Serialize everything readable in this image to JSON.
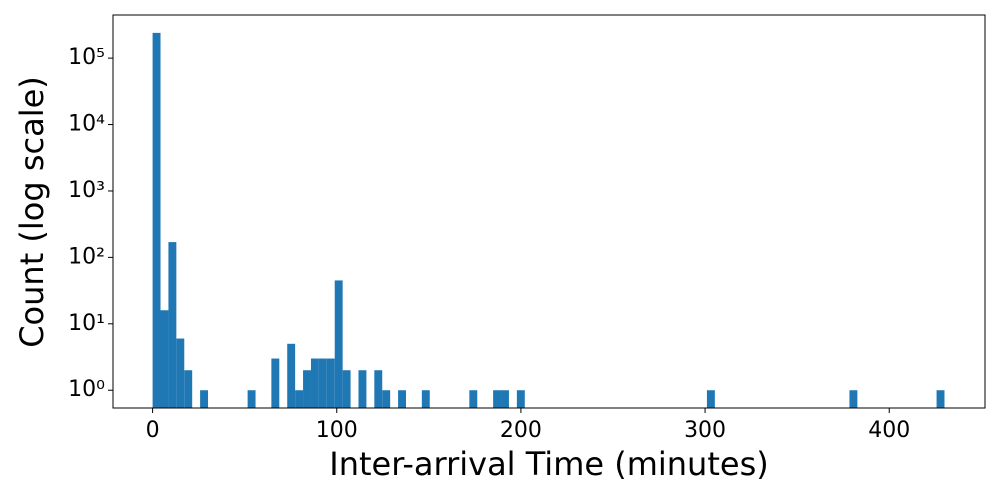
{
  "chart_data": {
    "type": "histogram",
    "x_label": "Inter-arrival Time (minutes)",
    "y_label": "Count (log scale)",
    "color": "#1f77b4",
    "log_y": true,
    "bins": [
      0,
      4.3,
      8.6,
      12.9,
      17.2,
      21.5,
      25.8,
      30.1,
      34.4,
      38.7,
      43,
      47.3,
      51.6,
      55.9,
      60.2,
      64.5,
      68.8,
      73.1,
      77.4,
      81.7,
      86,
      90.3,
      94.6,
      98.9,
      103.2,
      107.5,
      111.8,
      116.1,
      120.4,
      124.7,
      129,
      133.3,
      137.6,
      141.9,
      146.2,
      150.5,
      154.8,
      159.1,
      163.4,
      167.7,
      172,
      176.3,
      180.6,
      184.9,
      189.2,
      193.5,
      197.8,
      202.1,
      206.4,
      210.7,
      215,
      219.3,
      223.6,
      227.9,
      232.2,
      236.5,
      240.8,
      245.1,
      249.4,
      253.7,
      258,
      262.3,
      266.6,
      270.9,
      275.2,
      279.5,
      283.8,
      288.1,
      292.4,
      296.7,
      301,
      305.3,
      309.6,
      313.9,
      318.2,
      322.5,
      326.8,
      331.1,
      335.4,
      339.7,
      344,
      348.3,
      352.6,
      356.9,
      361.2,
      365.5,
      369.8,
      374.1,
      378.4,
      382.7,
      387,
      391.3,
      395.6,
      399.9,
      404.2,
      408.5,
      412.8,
      417.1,
      421.4,
      425.7,
      430
    ],
    "values": [
      240000,
      16,
      170,
      6,
      2,
      0,
      1,
      0,
      0,
      0,
      0,
      0,
      1,
      0,
      0,
      3,
      0,
      5,
      1,
      2,
      3,
      3,
      3,
      45,
      2,
      0,
      2,
      0,
      2,
      1,
      0,
      1,
      0,
      0,
      1,
      0,
      0,
      0,
      0,
      0,
      1,
      0,
      0,
      1,
      1,
      0,
      1,
      0,
      0,
      0,
      0,
      0,
      0,
      0,
      0,
      0,
      0,
      0,
      0,
      0,
      0,
      0,
      0,
      0,
      0,
      0,
      0,
      0,
      0,
      0,
      1,
      0,
      0,
      0,
      0,
      0,
      0,
      0,
      0,
      0,
      0,
      0,
      0,
      0,
      0,
      0,
      0,
      0,
      1,
      0,
      0,
      0,
      0,
      0,
      0,
      0,
      0,
      0,
      0,
      1
    ],
    "xlim": [
      -21.5,
      452
    ],
    "xticks": [
      0,
      100,
      200,
      300,
      400
    ],
    "ylim": [
      0.54,
      446000
    ],
    "yticks": [
      {
        "value": 1,
        "label": "10⁰"
      },
      {
        "value": 10,
        "label": "10¹"
      },
      {
        "value": 100,
        "label": "10²"
      },
      {
        "value": 1000,
        "label": "10³"
      },
      {
        "value": 10000,
        "label": "10⁴"
      },
      {
        "value": 100000,
        "label": "10⁵"
      }
    ]
  }
}
